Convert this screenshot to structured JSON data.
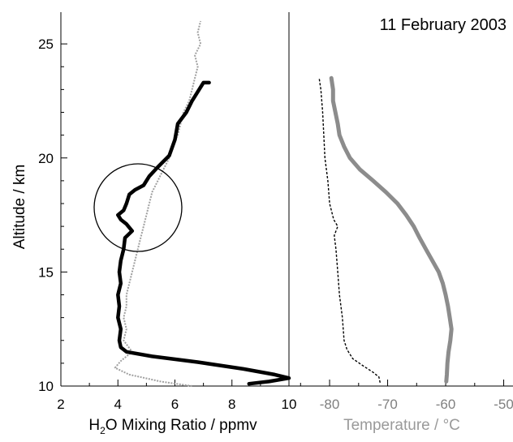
{
  "title": "11 February 2003",
  "colors": {
    "axis": "#000000",
    "h2o_black": "#000000",
    "h2o_gray": "#a0a0a0",
    "temp_dashed": "#000000",
    "temp_gray": "#8c8c8c",
    "temp_axis_text": "#808080"
  },
  "chart_data": [
    {
      "type": "line",
      "panel": "left",
      "xlabel_prefix": "H",
      "xlabel_sub": "2",
      "xlabel_suffix": "O Mixing Ratio / ppmv",
      "ylabel": "Altitude / km",
      "xlim": [
        2,
        10
      ],
      "ylim": [
        10,
        26
      ],
      "xticks": [
        "2",
        "4",
        "6",
        "8",
        "10"
      ],
      "yticks": [
        "10",
        "15",
        "20",
        "25"
      ],
      "annotation": "circle around 17–18.5 km",
      "series": [
        {
          "style": "thick black",
          "points": [
            [
              8.6,
              10.1
            ],
            [
              9.3,
              10.2
            ],
            [
              10.0,
              10.35
            ],
            [
              9.5,
              10.5
            ],
            [
              8.4,
              10.75
            ],
            [
              6.8,
              11.05
            ],
            [
              5.2,
              11.3
            ],
            [
              4.3,
              11.5
            ],
            [
              4.1,
              11.7
            ],
            [
              4.05,
              12.0
            ],
            [
              4.1,
              12.5
            ],
            [
              4.0,
              13.0
            ],
            [
              4.05,
              13.5
            ],
            [
              4.0,
              14.0
            ],
            [
              4.1,
              14.5
            ],
            [
              4.05,
              15.0
            ],
            [
              4.1,
              15.5
            ],
            [
              4.2,
              16.0
            ],
            [
              4.25,
              16.5
            ],
            [
              4.5,
              16.8
            ],
            [
              4.3,
              17.1
            ],
            [
              4.1,
              17.3
            ],
            [
              4.0,
              17.5
            ],
            [
              4.2,
              17.7
            ],
            [
              4.3,
              18.0
            ],
            [
              4.4,
              18.4
            ],
            [
              4.6,
              18.6
            ],
            [
              4.9,
              18.8
            ],
            [
              5.1,
              19.2
            ],
            [
              5.4,
              19.6
            ],
            [
              5.8,
              20.1
            ],
            [
              6.0,
              20.8
            ],
            [
              6.1,
              21.5
            ],
            [
              6.4,
              22.0
            ],
            [
              6.6,
              22.5
            ],
            [
              6.8,
              22.9
            ],
            [
              7.0,
              23.3
            ],
            [
              7.2,
              23.3
            ]
          ]
        },
        {
          "style": "thin gray dotted",
          "points": [
            [
              6.6,
              10.0
            ],
            [
              5.5,
              10.2
            ],
            [
              4.4,
              10.5
            ],
            [
              3.9,
              10.8
            ],
            [
              4.1,
              11.1
            ],
            [
              4.5,
              11.5
            ],
            [
              4.2,
              12.0
            ],
            [
              4.3,
              12.5
            ],
            [
              4.2,
              13.0
            ],
            [
              4.3,
              13.5
            ],
            [
              4.3,
              14.0
            ],
            [
              4.4,
              14.5
            ],
            [
              4.5,
              15.0
            ],
            [
              4.6,
              15.5
            ],
            [
              4.7,
              16.0
            ],
            [
              4.8,
              16.5
            ],
            [
              4.9,
              17.0
            ],
            [
              5.0,
              17.5
            ],
            [
              5.1,
              18.0
            ],
            [
              5.2,
              18.5
            ],
            [
              5.4,
              19.0
            ],
            [
              5.6,
              19.5
            ],
            [
              5.8,
              20.0
            ],
            [
              5.9,
              20.5
            ],
            [
              6.1,
              21.0
            ],
            [
              6.2,
              21.5
            ],
            [
              6.3,
              22.0
            ],
            [
              6.5,
              22.5
            ],
            [
              6.6,
              23.0
            ],
            [
              6.7,
              23.5
            ],
            [
              6.8,
              24.0
            ],
            [
              6.7,
              24.5
            ],
            [
              6.9,
              25.0
            ],
            [
              6.8,
              25.5
            ],
            [
              6.9,
              26.0
            ]
          ]
        }
      ]
    },
    {
      "type": "line",
      "panel": "right",
      "xlabel": "Temperature / °C",
      "xlim": [
        -87,
        -47
      ],
      "ylim": [
        10,
        26
      ],
      "xticks": [
        "-80",
        "-70",
        "-60",
        "-50"
      ],
      "xtick_values": [
        -80,
        -70,
        -60,
        -50
      ],
      "series": [
        {
          "style": "thin black dashed",
          "points": [
            [
              -71.3,
              10.15
            ],
            [
              -71.5,
              10.4
            ],
            [
              -72.5,
              10.6
            ],
            [
              -74.0,
              10.85
            ],
            [
              -76.0,
              11.2
            ],
            [
              -77.0,
              11.6
            ],
            [
              -77.5,
              12.0
            ],
            [
              -77.8,
              13.0
            ],
            [
              -78.3,
              14.0
            ],
            [
              -78.6,
              15.0
            ],
            [
              -78.9,
              16.0
            ],
            [
              -79.2,
              16.6
            ],
            [
              -78.6,
              17.0
            ],
            [
              -79.3,
              17.3
            ],
            [
              -80.0,
              18.0
            ],
            [
              -80.3,
              19.0
            ],
            [
              -80.8,
              20.0
            ],
            [
              -81.0,
              21.0
            ],
            [
              -81.2,
              22.0
            ],
            [
              -81.5,
              23.0
            ],
            [
              -81.8,
              23.5
            ]
          ]
        },
        {
          "style": "thick gray",
          "points": [
            [
              -59.9,
              10.2
            ],
            [
              -59.8,
              10.5
            ],
            [
              -59.7,
              11.0
            ],
            [
              -59.5,
              11.5
            ],
            [
              -59.2,
              12.0
            ],
            [
              -59.0,
              12.5
            ],
            [
              -59.3,
              13.0
            ],
            [
              -59.6,
              13.5
            ],
            [
              -60.0,
              14.0
            ],
            [
              -60.5,
              14.5
            ],
            [
              -61.2,
              15.0
            ],
            [
              -62.3,
              15.5
            ],
            [
              -63.4,
              16.0
            ],
            [
              -64.5,
              16.5
            ],
            [
              -65.5,
              17.0
            ],
            [
              -66.8,
              17.5
            ],
            [
              -68.3,
              18.0
            ],
            [
              -70.3,
              18.5
            ],
            [
              -72.5,
              19.0
            ],
            [
              -74.8,
              19.5
            ],
            [
              -76.5,
              20.0
            ],
            [
              -77.5,
              20.5
            ],
            [
              -78.3,
              21.0
            ],
            [
              -78.6,
              21.5
            ],
            [
              -79.0,
              22.0
            ],
            [
              -79.4,
              22.5
            ],
            [
              -79.4,
              23.0
            ],
            [
              -79.7,
              23.5
            ]
          ]
        }
      ]
    }
  ]
}
